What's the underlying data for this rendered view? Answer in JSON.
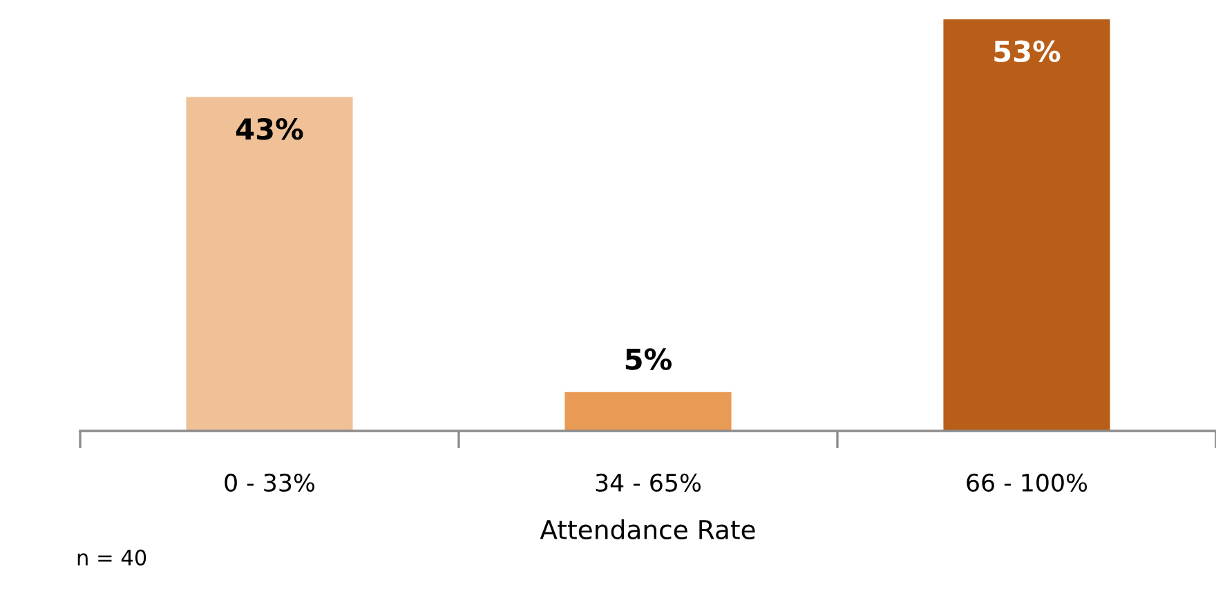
{
  "chart_data": {
    "type": "bar",
    "xlabel": "Attendance Rate",
    "categories": [
      "0 - 33%",
      "34 - 65%",
      "66 - 100%"
    ],
    "values": [
      43,
      5,
      53
    ],
    "colors": [
      "#f0c096",
      "#e99a55",
      "#b95e18"
    ],
    "value_labels": [
      "43%",
      "5%",
      "53%"
    ],
    "grid": false,
    "legend": false,
    "annotations": [
      "n = 40"
    ]
  }
}
